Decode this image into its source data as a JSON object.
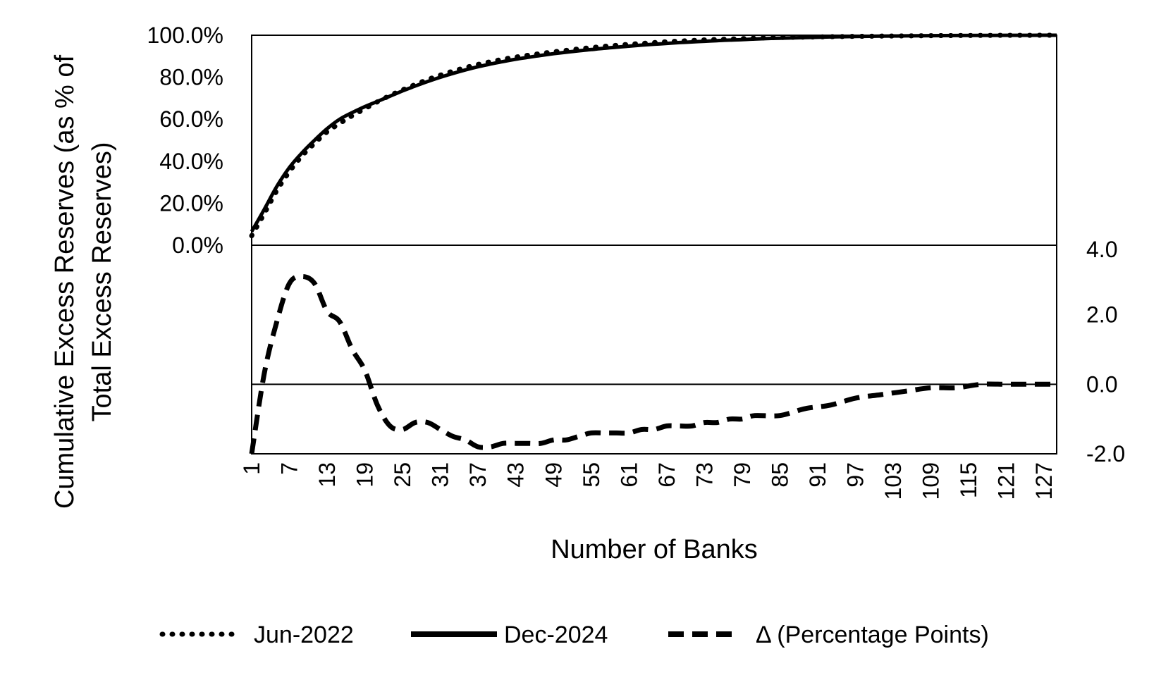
{
  "chart_data": {
    "type": "line",
    "xlabel": "Number of Banks",
    "ylabel_line1": "Cumulative Excess Reserves (as % of",
    "ylabel_line2": "Total Excess Reserves)",
    "x_tick_labels": [
      "1",
      "7",
      "13",
      "19",
      "25",
      "31",
      "37",
      "43",
      "49",
      "55",
      "61",
      "67",
      "73",
      "79",
      "85",
      "91",
      "97",
      "103",
      "109",
      "115",
      "121",
      "127"
    ],
    "left_axis": {
      "ylim": [
        0,
        100
      ],
      "tick_labels": [
        "0.0%",
        "20.0%",
        "40.0%",
        "60.0%",
        "80.0%",
        "100.0%"
      ],
      "tick_values": [
        0,
        20,
        40,
        60,
        80,
        100
      ]
    },
    "right_axis": {
      "ylim": [
        -2,
        4
      ],
      "tick_labels": [
        "-2.0",
        "0.0",
        "2.0",
        "4.0"
      ],
      "tick_values": [
        -2,
        0,
        2,
        4
      ]
    },
    "xlim": [
      1,
      129
    ],
    "series": [
      {
        "name": "Jun-2022",
        "style": "dotted",
        "axis": "left",
        "x": [
          1,
          3,
          5,
          7,
          9,
          11,
          13,
          15,
          17,
          19,
          21,
          23,
          25,
          27,
          29,
          31,
          33,
          35,
          37,
          39,
          41,
          43,
          45,
          47,
          49,
          51,
          53,
          55,
          57,
          59,
          61,
          63,
          65,
          67,
          69,
          71,
          73,
          75,
          77,
          79,
          81,
          85,
          89,
          93,
          97,
          101,
          105,
          109,
          113,
          117,
          121,
          125,
          129
        ],
        "values": [
          4.5,
          15,
          26,
          35,
          42.5,
          48.5,
          54,
          58,
          61.7,
          65,
          68.3,
          71.3,
          74,
          76.5,
          78.9,
          81,
          82.9,
          84.6,
          86.1,
          87.4,
          88.6,
          89.6,
          90.5,
          91.3,
          92.1,
          92.8,
          93.5,
          94.1,
          94.7,
          95.2,
          95.7,
          96.1,
          96.5,
          96.9,
          97.2,
          97.5,
          97.8,
          98.0,
          98.2,
          98.4,
          98.6,
          98.9,
          99.1,
          99.3,
          99.45,
          99.6,
          99.7,
          99.8,
          99.85,
          99.9,
          99.95,
          99.98,
          100
        ]
      },
      {
        "name": "Dec-2024",
        "style": "solid",
        "axis": "left",
        "x": [
          1,
          3,
          5,
          7,
          9,
          11,
          13,
          15,
          17,
          19,
          21,
          23,
          25,
          27,
          29,
          31,
          33,
          35,
          37,
          39,
          41,
          43,
          45,
          47,
          49,
          51,
          53,
          55,
          57,
          59,
          61,
          63,
          65,
          67,
          69,
          71,
          73,
          75,
          77,
          79,
          81,
          85,
          89,
          93,
          97,
          101,
          105,
          109,
          113,
          117,
          121,
          125,
          129
        ],
        "values": [
          6.5,
          17,
          28,
          37,
          44,
          50,
          55.5,
          60,
          63.2,
          66,
          68.5,
          71,
          73.5,
          75.8,
          78,
          80,
          81.8,
          83.5,
          85,
          86.3,
          87.5,
          88.6,
          89.5,
          90.4,
          91.2,
          91.9,
          92.6,
          93.2,
          93.8,
          94.3,
          94.8,
          95.3,
          95.7,
          96.1,
          96.5,
          96.8,
          97.1,
          97.4,
          97.7,
          97.9,
          98.2,
          98.6,
          98.9,
          99.2,
          99.4,
          99.55,
          99.7,
          99.8,
          99.85,
          99.9,
          99.95,
          99.98,
          100
        ]
      },
      {
        "name": "Δ (Percentage Points)",
        "style": "dashed",
        "axis": "right",
        "x": [
          1,
          3,
          5,
          7,
          9,
          11,
          13,
          15,
          17,
          19,
          21,
          23,
          25,
          27,
          29,
          31,
          33,
          35,
          37,
          39,
          41,
          43,
          45,
          47,
          49,
          51,
          53,
          55,
          57,
          59,
          61,
          63,
          65,
          67,
          69,
          71,
          73,
          75,
          77,
          79,
          81,
          85,
          89,
          93,
          97,
          101,
          105,
          109,
          113,
          117,
          121,
          125,
          129
        ],
        "values": [
          -2.0,
          0.3,
          1.8,
          2.9,
          3.1,
          2.9,
          2.1,
          1.8,
          1.0,
          0.4,
          -0.6,
          -1.2,
          -1.3,
          -1.1,
          -1.1,
          -1.3,
          -1.5,
          -1.6,
          -1.8,
          -1.8,
          -1.7,
          -1.7,
          -1.7,
          -1.7,
          -1.6,
          -1.6,
          -1.5,
          -1.4,
          -1.4,
          -1.4,
          -1.4,
          -1.3,
          -1.3,
          -1.2,
          -1.2,
          -1.2,
          -1.1,
          -1.1,
          -1.0,
          -1.0,
          -0.9,
          -0.9,
          -0.7,
          -0.6,
          -0.4,
          -0.3,
          -0.2,
          -0.1,
          -0.1,
          0.0,
          0.0,
          0.0,
          0.0
        ]
      }
    ],
    "legend": {
      "placement": "bottom"
    }
  }
}
